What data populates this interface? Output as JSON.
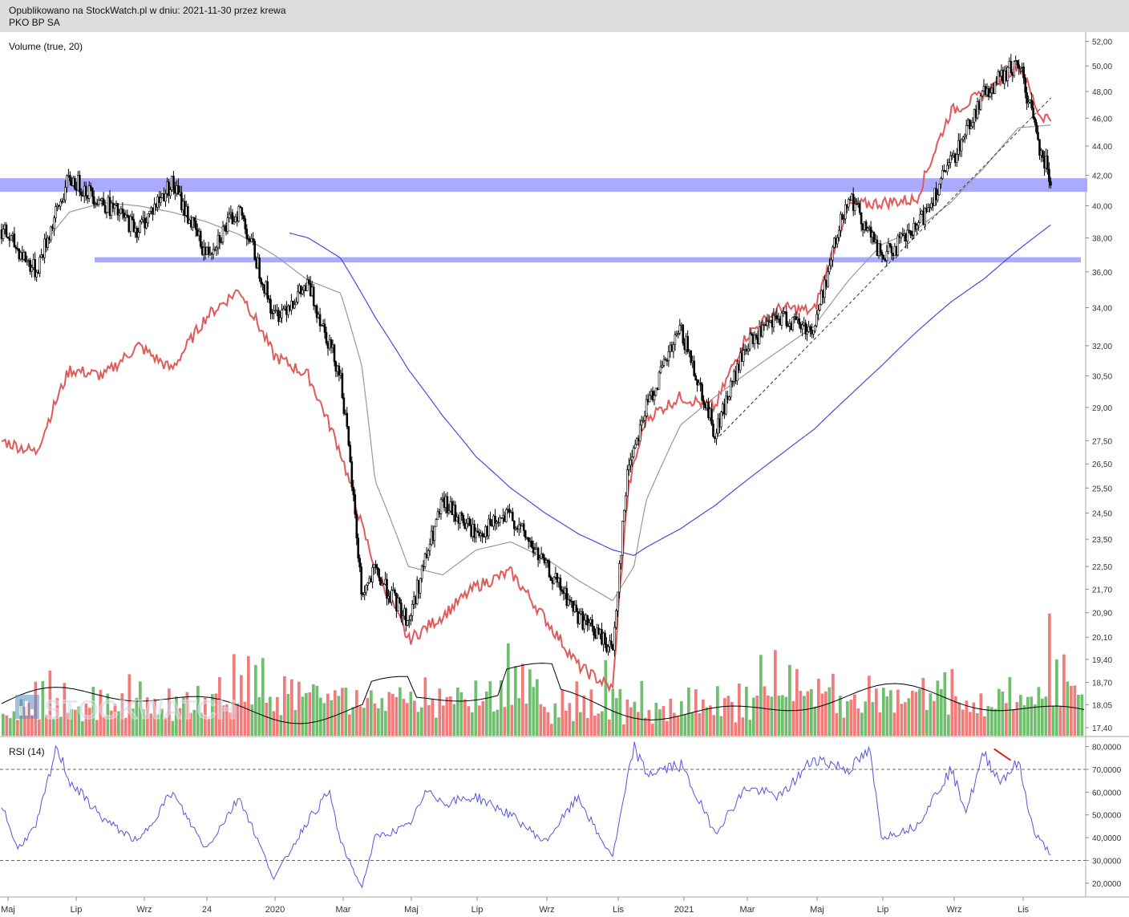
{
  "header": {
    "published": "Opublikowano na StockWatch.pl w dniu: 2021-11-30 przez krewa",
    "ticker": "PKO BP SA"
  },
  "watermark": "STOCKWATCH",
  "colors": {
    "candle": "#000000",
    "relative_line": "#e05a5a",
    "ma_short": "#999999",
    "ma_long": "#4a4ae0",
    "support_band": "#aaaaff",
    "volume_up": "#6fbf6f",
    "volume_down": "#f07c7c",
    "rsi_line": "#5555dd",
    "divergence": "#dd2222"
  },
  "chart_data": [
    {
      "type": "candlestick",
      "title": "",
      "y_ticks": [
        "52,00",
        "50,00",
        "48,00",
        "46,00",
        "44,00",
        "42,00",
        "40,00",
        "38,00",
        "36,00",
        "34,00",
        "32,00",
        "30,50",
        "29,00",
        "27,50",
        "26,50",
        "25,50",
        "24,50",
        "23,50",
        "22,50",
        "21,70",
        "20,90",
        "20,10",
        "19,40",
        "18,70",
        "18,05",
        "17,40"
      ],
      "y_scale": "log",
      "ylim": [
        17.2,
        52.5
      ],
      "x_ticks": [
        "Maj",
        "Lip",
        "Wrz",
        "24",
        "2020",
        "Mar",
        "Maj",
        "Lip",
        "Wrz",
        "Lis",
        "2021",
        "Mar",
        "Maj",
        "Lip",
        "Wrz",
        "Lis"
      ],
      "support_zones": [
        [
          40.9,
          41.8
        ],
        [
          36.55,
          36.85
        ]
      ],
      "price_path": [
        [
          "2019-05",
          38.5
        ],
        [
          "2019-06",
          36.0
        ],
        [
          "2019-07",
          41.8
        ],
        [
          "2019-08",
          40.2
        ],
        [
          "2019-09",
          38.5
        ],
        [
          "2019-10",
          41.5
        ],
        [
          "2019-11",
          37.0
        ],
        [
          "2019-12",
          39.8
        ],
        [
          "2020-01",
          33.5
        ],
        [
          "2020-02",
          35.2
        ],
        [
          "2020-03",
          30.5
        ],
        [
          "2020-03-20",
          21.5
        ],
        [
          "2020-04",
          22.3
        ],
        [
          "2020-05",
          20.6
        ],
        [
          "2020-06",
          24.9
        ],
        [
          "2020-07",
          23.7
        ],
        [
          "2020-08",
          24.4
        ],
        [
          "2020-09",
          22.5
        ],
        [
          "2020-10",
          20.8
        ],
        [
          "2020-11-01",
          19.7
        ],
        [
          "2020-11-15",
          26.5
        ],
        [
          "2020-12",
          29.0
        ],
        [
          "2021-01",
          32.8
        ],
        [
          "2021-02",
          27.8
        ],
        [
          "2021-03",
          32.0
        ],
        [
          "2021-04",
          33.5
        ],
        [
          "2021-05",
          32.8
        ],
        [
          "2021-06",
          40.8
        ],
        [
          "2021-07",
          36.8
        ],
        [
          "2021-08",
          38.5
        ],
        [
          "2021-09",
          42.8
        ],
        [
          "2021-10",
          47.8
        ],
        [
          "2021-11-01",
          50.3
        ],
        [
          "2021-11-20",
          44.0
        ],
        [
          "2021-11-30",
          41.8
        ]
      ],
      "relative_line_path": [
        [
          "2019-05",
          27.5
        ],
        [
          "2019-06",
          27.0
        ],
        [
          "2019-07",
          30.8
        ],
        [
          "2019-08",
          30.5
        ],
        [
          "2019-09",
          32.0
        ],
        [
          "2019-10",
          30.8
        ],
        [
          "2019-11",
          33.5
        ],
        [
          "2019-12",
          35.0
        ],
        [
          "2020-01",
          31.5
        ],
        [
          "2020-02",
          30.5
        ],
        [
          "2020-03",
          27.0
        ],
        [
          "2020-03-20",
          24.0
        ],
        [
          "2020-04",
          22.5
        ],
        [
          "2020-05",
          20.0
        ],
        [
          "2020-06",
          20.8
        ],
        [
          "2020-07",
          21.8
        ],
        [
          "2020-08",
          22.3
        ],
        [
          "2020-09",
          20.7
        ],
        [
          "2020-10",
          19.2
        ],
        [
          "2020-11-01",
          18.5
        ],
        [
          "2020-11-15",
          25.5
        ],
        [
          "2020-12",
          28.5
        ],
        [
          "2021-01",
          29.5
        ],
        [
          "2021-02",
          29.0
        ],
        [
          "2021-03",
          32.5
        ],
        [
          "2021-04",
          34.0
        ],
        [
          "2021-05",
          33.8
        ],
        [
          "2021-06",
          40.0
        ],
        [
          "2021-07",
          40.2
        ],
        [
          "2021-08",
          40.4
        ],
        [
          "2021-09",
          46.5
        ],
        [
          "2021-10",
          47.8
        ],
        [
          "2021-11-01",
          50.2
        ],
        [
          "2021-11-20",
          46.2
        ],
        [
          "2021-11-30",
          46.0
        ]
      ],
      "ma_short_path": [
        [
          "2019-06-10",
          37.8
        ],
        [
          "2019-07",
          39.6
        ],
        [
          "2019-08",
          40.2
        ],
        [
          "2019-09",
          40.0
        ],
        [
          "2019-10",
          39.6
        ],
        [
          "2019-11",
          39.0
        ],
        [
          "2019-12",
          38.2
        ],
        [
          "2020-01",
          37.0
        ],
        [
          "2020-02",
          35.5
        ],
        [
          "2020-03-01",
          34.8
        ],
        [
          "2020-03-20",
          31.0
        ],
        [
          "2020-04",
          25.8
        ],
        [
          "2020-05",
          22.5
        ],
        [
          "2020-06",
          22.2
        ],
        [
          "2020-07",
          23.1
        ],
        [
          "2020-08",
          23.4
        ],
        [
          "2020-09",
          22.8
        ],
        [
          "2020-10",
          22.0
        ],
        [
          "2020-11-01",
          21.3
        ],
        [
          "2020-11-20",
          22.5
        ],
        [
          "2020-12",
          25.0
        ],
        [
          "2021-01",
          28.2
        ],
        [
          "2021-02",
          29.5
        ],
        [
          "2021-03",
          30.6
        ],
        [
          "2021-04",
          31.8
        ],
        [
          "2021-05",
          33.0
        ],
        [
          "2021-06",
          35.5
        ],
        [
          "2021-07",
          37.6
        ],
        [
          "2021-08",
          38.5
        ],
        [
          "2021-09",
          40.2
        ],
        [
          "2021-10",
          42.5
        ],
        [
          "2021-11-01",
          45.3
        ],
        [
          "2021-11-30",
          45.5
        ]
      ],
      "ma_long_path": [
        [
          "2020-01-15",
          38.3
        ],
        [
          "2020-02",
          38.0
        ],
        [
          "2020-03",
          36.8
        ],
        [
          "2020-04",
          33.5
        ],
        [
          "2020-05",
          30.8
        ],
        [
          "2020-06",
          28.6
        ],
        [
          "2020-07",
          26.8
        ],
        [
          "2020-08",
          25.5
        ],
        [
          "2020-09",
          24.5
        ],
        [
          "2020-10",
          23.7
        ],
        [
          "2020-11",
          23.1
        ],
        [
          "2020-11-20",
          22.9
        ],
        [
          "2020-12",
          23.2
        ],
        [
          "2021-01",
          23.9
        ],
        [
          "2021-02",
          24.8
        ],
        [
          "2021-03",
          25.8
        ],
        [
          "2021-04",
          26.9
        ],
        [
          "2021-05",
          28.0
        ],
        [
          "2021-06",
          29.5
        ],
        [
          "2021-07",
          31.0
        ],
        [
          "2021-08",
          32.7
        ],
        [
          "2021-09",
          34.3
        ],
        [
          "2021-10",
          35.6
        ],
        [
          "2021-11",
          37.3
        ],
        [
          "2021-11-30",
          38.8
        ]
      ],
      "trend_line": [
        [
          "2021-02-05",
          27.7
        ],
        [
          "2021-11-30",
          47.5
        ]
      ]
    },
    {
      "type": "bar",
      "title": "Volume (true, 20)",
      "series": [
        {
          "name": "",
          "values": [
            6,
            8,
            5,
            10,
            4,
            12,
            7,
            9,
            5,
            14,
            6,
            11,
            8,
            13,
            5,
            9,
            7,
            15,
            6,
            10,
            8,
            12,
            5,
            9,
            7,
            11,
            6,
            13,
            8,
            10,
            5,
            9,
            7,
            12,
            6,
            14,
            9,
            8,
            11,
            6,
            10,
            7,
            13,
            5,
            9,
            8,
            12,
            6,
            11,
            7,
            15,
            9,
            10,
            6,
            12,
            8,
            14,
            7,
            11,
            9,
            16,
            10,
            13,
            8,
            18,
            12,
            15,
            10,
            22,
            14,
            20,
            12,
            18,
            11,
            16,
            10,
            14,
            9,
            17,
            11,
            15,
            10,
            13,
            8,
            12,
            9,
            14,
            11,
            10,
            8,
            12,
            7,
            11,
            9,
            13,
            10,
            9,
            8,
            11,
            7,
            10,
            12,
            9,
            14,
            10,
            13,
            8,
            11,
            9,
            12,
            10,
            15,
            9,
            13,
            11,
            10,
            8,
            12,
            9,
            11,
            7,
            10,
            8,
            12,
            9,
            11,
            10,
            13,
            8,
            12,
            9,
            14,
            10,
            11,
            9,
            12,
            8,
            10,
            11,
            9,
            24,
            12,
            15,
            10,
            18,
            13,
            20,
            11,
            16,
            9
          ]
        }
      ],
      "ma_line": "20-period average"
    },
    {
      "type": "line",
      "title": "RSI (14)",
      "y_ticks": [
        "80,0000",
        "70,0000",
        "60,0000",
        "50,0000",
        "40,0000",
        "30,0000",
        "20,0000"
      ],
      "ylim": [
        15,
        82
      ],
      "levels": [
        70,
        30
      ],
      "rsi_path": [
        [
          "2019-05",
          55
        ],
        [
          "2019-05-15",
          35
        ],
        [
          "2019-06",
          45
        ],
        [
          "2019-06-20",
          80
        ],
        [
          "2019-07",
          65
        ],
        [
          "2019-08",
          48
        ],
        [
          "2019-09",
          38
        ],
        [
          "2019-10",
          60
        ],
        [
          "2019-11",
          35
        ],
        [
          "2019-12",
          58
        ],
        [
          "2020-01",
          22
        ],
        [
          "2020-02",
          48
        ],
        [
          "2020-02-20",
          60
        ],
        [
          "2020-03",
          38
        ],
        [
          "2020-03-20",
          18
        ],
        [
          "2020-04",
          40
        ],
        [
          "2020-05",
          45
        ],
        [
          "2020-05-20",
          62
        ],
        [
          "2020-06",
          55
        ],
        [
          "2020-07",
          58
        ],
        [
          "2020-08",
          50
        ],
        [
          "2020-09",
          38
        ],
        [
          "2020-10",
          58
        ],
        [
          "2020-10-20",
          40
        ],
        [
          "2020-11-01",
          32
        ],
        [
          "2020-11-20",
          80
        ],
        [
          "2020-12",
          68
        ],
        [
          "2021-01",
          72
        ],
        [
          "2021-02",
          42
        ],
        [
          "2021-03",
          62
        ],
        [
          "2021-04",
          58
        ],
        [
          "2021-05",
          75
        ],
        [
          "2021-06",
          70
        ],
        [
          "2021-06-20",
          78
        ],
        [
          "2021-07",
          40
        ],
        [
          "2021-08",
          45
        ],
        [
          "2021-09",
          70
        ],
        [
          "2021-09-15",
          52
        ],
        [
          "2021-10",
          77
        ],
        [
          "2021-10-15",
          65
        ],
        [
          "2021-11-01",
          73
        ],
        [
          "2021-11-15",
          42
        ],
        [
          "2021-11-30",
          33
        ]
      ],
      "divergence_line": [
        [
          "2021-10-10",
          79
        ],
        [
          "2021-10-25",
          74
        ]
      ]
    }
  ]
}
